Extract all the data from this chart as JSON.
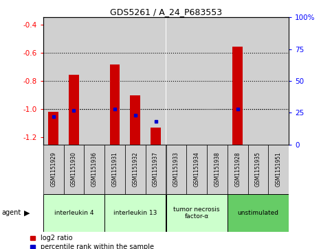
{
  "title": "GDS5261 / A_24_P683553",
  "samples": [
    "GSM1151929",
    "GSM1151930",
    "GSM1151936",
    "GSM1151931",
    "GSM1151932",
    "GSM1151937",
    "GSM1151933",
    "GSM1151934",
    "GSM1151938",
    "GSM1151928",
    "GSM1151935",
    "GSM1151951"
  ],
  "log2_ratio": [
    -1.02,
    -0.755,
    null,
    -0.685,
    -0.9,
    -1.13,
    null,
    null,
    null,
    -0.555,
    null,
    null
  ],
  "percentile": [
    22,
    27,
    null,
    28,
    23,
    18,
    null,
    null,
    null,
    28,
    null,
    null
  ],
  "groups": [
    {
      "label": "interleukin 4",
      "indices": [
        0,
        1,
        2
      ],
      "color": "#ccffcc"
    },
    {
      "label": "interleukin 13",
      "indices": [
        3,
        4,
        5
      ],
      "color": "#ccffcc"
    },
    {
      "label": "tumor necrosis\nfactor-α",
      "indices": [
        6,
        7,
        8
      ],
      "color": "#ccffcc"
    },
    {
      "label": "unstimulated",
      "indices": [
        9,
        10,
        11
      ],
      "color": "#66cc66"
    }
  ],
  "ylim_left": [
    -1.25,
    -0.35
  ],
  "ylim_right": [
    0,
    100
  ],
  "yticks_left": [
    -1.2,
    -1.0,
    -0.8,
    -0.6,
    -0.4
  ],
  "yticks_right": [
    0,
    25,
    50,
    75,
    100
  ],
  "ytick_labels_right": [
    "0",
    "25",
    "50",
    "75",
    "100%"
  ],
  "grid_values": [
    -1.0,
    -0.8,
    -0.6
  ],
  "bar_color": "#cc0000",
  "dot_color": "#0000cc",
  "sample_bg_color": "#d0d0d0",
  "agent_label": "agent",
  "legend_items": [
    {
      "label": "log2 ratio",
      "color": "#cc0000"
    },
    {
      "label": "percentile rank within the sample",
      "color": "#0000cc"
    }
  ]
}
